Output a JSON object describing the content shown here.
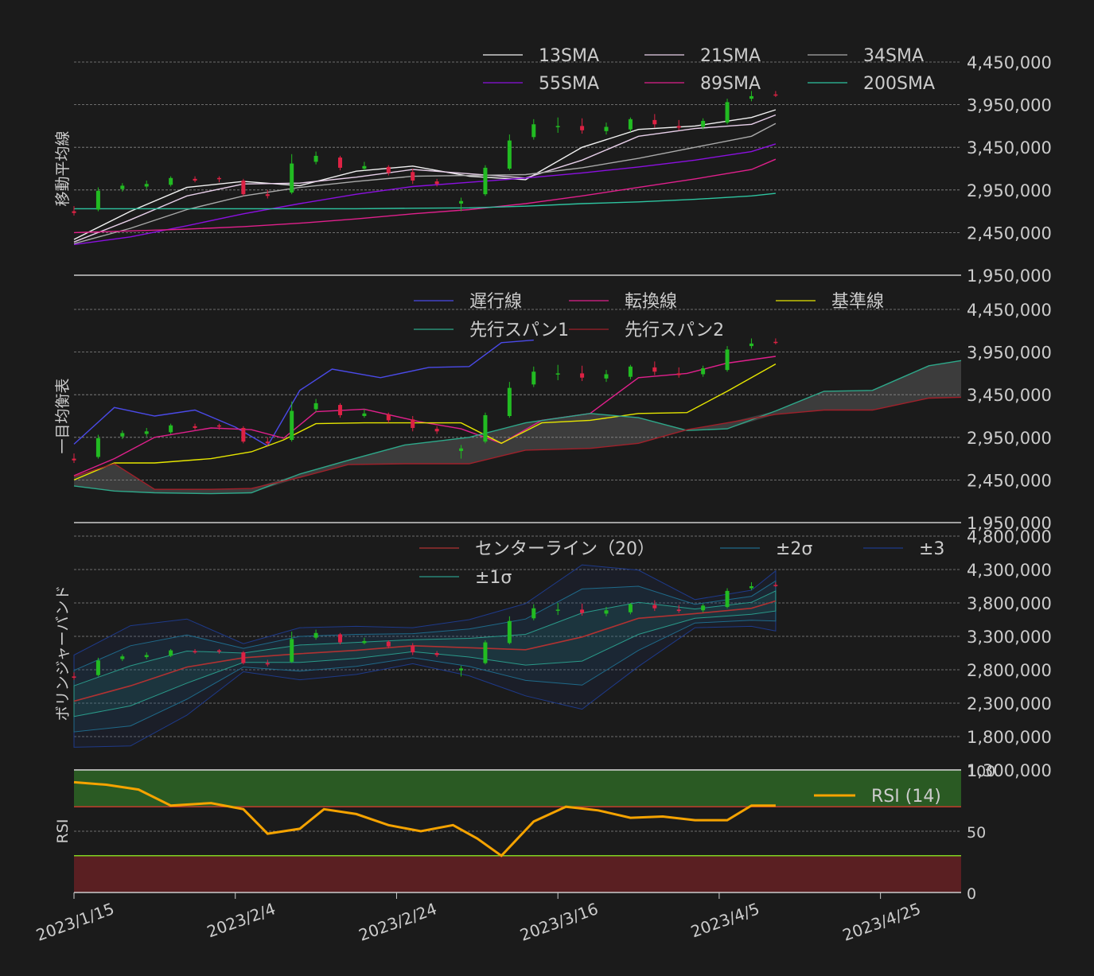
{
  "chart_data": [
    {
      "type": "line",
      "panel_label": "移動平均線",
      "x_range": [
        "2023-01-15",
        "2023-05-05"
      ],
      "ylim": [
        1950000,
        4450000
      ],
      "y_ticks": [
        1950000,
        2450000,
        2950000,
        3450000,
        3950000,
        4450000
      ],
      "y_tick_labels": [
        "1,950,000",
        "2,450,000",
        "2,950,000",
        "3,450,000",
        "3,950,000",
        "4,450,000"
      ],
      "grid": true,
      "legend_position": "top-right",
      "legend": [
        "13SMA",
        "34SMA",
        "89SMA",
        "21SMA",
        "55SMA",
        "200SMA"
      ],
      "series": [
        {
          "name": "13SMA",
          "color": "#f2f2f2",
          "x": [
            "2023-01-15",
            "2023-01-22",
            "2023-01-29",
            "2023-02-05",
            "2023-02-12",
            "2023-02-19",
            "2023-02-26",
            "2023-03-05",
            "2023-03-12",
            "2023-03-19",
            "2023-03-26",
            "2023-04-02",
            "2023-04-09",
            "2023-04-12"
          ],
          "values": [
            2370000,
            2700000,
            2980000,
            3050000,
            3000000,
            3170000,
            3230000,
            3110000,
            3070000,
            3450000,
            3660000,
            3700000,
            3800000,
            3890000
          ]
        },
        {
          "name": "21SMA",
          "color": "#e8d0ea",
          "x": [
            "2023-01-15",
            "2023-01-22",
            "2023-01-29",
            "2023-02-05",
            "2023-02-12",
            "2023-02-19",
            "2023-02-26",
            "2023-03-05",
            "2023-03-12",
            "2023-03-19",
            "2023-03-26",
            "2023-04-02",
            "2023-04-09",
            "2023-04-12"
          ],
          "values": [
            2340000,
            2600000,
            2880000,
            3020000,
            3030000,
            3100000,
            3190000,
            3140000,
            3090000,
            3300000,
            3580000,
            3670000,
            3720000,
            3830000
          ]
        },
        {
          "name": "34SMA",
          "color": "#aaaaaa",
          "x": [
            "2023-01-15",
            "2023-01-22",
            "2023-01-29",
            "2023-02-05",
            "2023-02-12",
            "2023-02-19",
            "2023-02-26",
            "2023-03-05",
            "2023-03-12",
            "2023-03-19",
            "2023-03-26",
            "2023-04-02",
            "2023-04-09",
            "2023-04-12"
          ],
          "values": [
            2320000,
            2500000,
            2720000,
            2880000,
            2980000,
            3050000,
            3110000,
            3120000,
            3130000,
            3210000,
            3320000,
            3450000,
            3580000,
            3730000
          ]
        },
        {
          "name": "55SMA",
          "color": "#8b10e0",
          "x": [
            "2023-01-15",
            "2023-01-22",
            "2023-01-29",
            "2023-02-05",
            "2023-02-12",
            "2023-02-19",
            "2023-02-26",
            "2023-03-05",
            "2023-03-12",
            "2023-03-19",
            "2023-03-26",
            "2023-04-02",
            "2023-04-09",
            "2023-04-12"
          ],
          "values": [
            2310000,
            2400000,
            2530000,
            2670000,
            2790000,
            2900000,
            2990000,
            3040000,
            3090000,
            3150000,
            3220000,
            3300000,
            3400000,
            3490000
          ]
        },
        {
          "name": "89SMA",
          "color": "#e0208c",
          "x": [
            "2023-01-15",
            "2023-01-22",
            "2023-01-29",
            "2023-02-05",
            "2023-02-12",
            "2023-02-19",
            "2023-02-26",
            "2023-03-05",
            "2023-03-12",
            "2023-03-19",
            "2023-03-26",
            "2023-04-02",
            "2023-04-09",
            "2023-04-12"
          ],
          "values": [
            2450000,
            2470000,
            2490000,
            2520000,
            2560000,
            2610000,
            2670000,
            2720000,
            2790000,
            2880000,
            2980000,
            3080000,
            3190000,
            3310000
          ]
        },
        {
          "name": "200SMA",
          "color": "#2ec4a0",
          "x": [
            "2023-01-15",
            "2023-01-22",
            "2023-01-29",
            "2023-02-05",
            "2023-02-12",
            "2023-02-19",
            "2023-02-26",
            "2023-03-05",
            "2023-03-12",
            "2023-03-19",
            "2023-03-26",
            "2023-04-02",
            "2023-04-09",
            "2023-04-12"
          ],
          "values": [
            2730000,
            2730000,
            2730000,
            2730000,
            2730000,
            2730000,
            2735000,
            2740000,
            2760000,
            2790000,
            2810000,
            2840000,
            2880000,
            2910000
          ]
        }
      ]
    },
    {
      "type": "line",
      "panel_label": "一目均衡表",
      "x_range": [
        "2023-01-15",
        "2023-05-05"
      ],
      "ylim": [
        1950000,
        4450000
      ],
      "y_ticks": [
        1950000,
        2450000,
        2950000,
        3450000,
        3950000,
        4450000
      ],
      "y_tick_labels": [
        "1,950,000",
        "2,450,000",
        "2,950,000",
        "3,450,000",
        "3,950,000",
        "4,450,000"
      ],
      "grid": true,
      "legend_position": "top-right",
      "legend": [
        "遅行線",
        "基準線",
        "先行スパン2",
        "転換線",
        "先行スパン1"
      ],
      "series": [
        {
          "name": "遅行線",
          "color": "#4a4ae8",
          "x": [
            "2023-01-15",
            "2023-01-20",
            "2023-01-25",
            "2023-01-30",
            "2023-02-04",
            "2023-02-08",
            "2023-02-12",
            "2023-02-16",
            "2023-02-22",
            "2023-02-28",
            "2023-03-05",
            "2023-03-09",
            "2023-03-13"
          ],
          "values": [
            2870000,
            3300000,
            3200000,
            3270000,
            3070000,
            2850000,
            3500000,
            3750000,
            3650000,
            3770000,
            3780000,
            4060000,
            4090000
          ]
        },
        {
          "name": "転換線",
          "color": "#e0208c",
          "x": [
            "2023-01-15",
            "2023-01-20",
            "2023-01-25",
            "2023-02-01",
            "2023-02-06",
            "2023-02-10",
            "2023-02-14",
            "2023-02-20",
            "2023-02-27",
            "2023-03-04",
            "2023-03-09",
            "2023-03-14",
            "2023-03-20",
            "2023-03-26",
            "2023-04-01",
            "2023-04-06",
            "2023-04-12"
          ],
          "values": [
            2500000,
            2700000,
            2950000,
            3060000,
            3040000,
            2940000,
            3250000,
            3280000,
            3130000,
            3050000,
            2880000,
            3150000,
            3230000,
            3650000,
            3700000,
            3820000,
            3900000
          ]
        },
        {
          "name": "基準線",
          "color": "#e6e600",
          "x": [
            "2023-01-15",
            "2023-01-20",
            "2023-01-25",
            "2023-02-01",
            "2023-02-06",
            "2023-02-10",
            "2023-02-14",
            "2023-02-20",
            "2023-02-27",
            "2023-03-04",
            "2023-03-09",
            "2023-03-14",
            "2023-03-20",
            "2023-03-26",
            "2023-04-01",
            "2023-04-06",
            "2023-04-12"
          ],
          "values": [
            2450000,
            2650000,
            2650000,
            2700000,
            2780000,
            2920000,
            3110000,
            3120000,
            3120000,
            3120000,
            2880000,
            3120000,
            3150000,
            3230000,
            3240000,
            3490000,
            3810000
          ]
        },
        {
          "name": "先行スパン1",
          "color": "#2ea88a",
          "x": [
            "2023-01-15",
            "2023-01-20",
            "2023-01-25",
            "2023-02-01",
            "2023-02-06",
            "2023-02-12",
            "2023-02-18",
            "2023-02-25",
            "2023-03-05",
            "2023-03-12",
            "2023-03-20",
            "2023-03-26",
            "2023-04-01",
            "2023-04-06",
            "2023-04-12",
            "2023-04-18",
            "2023-04-24",
            "2023-05-01",
            "2023-05-05"
          ],
          "values": [
            2380000,
            2320000,
            2300000,
            2290000,
            2300000,
            2520000,
            2680000,
            2860000,
            2950000,
            3120000,
            3230000,
            3180000,
            3030000,
            3050000,
            3260000,
            3490000,
            3500000,
            3790000,
            3850000
          ]
        },
        {
          "name": "先行スパン2",
          "color": "#a0202a",
          "x": [
            "2023-01-15",
            "2023-01-20",
            "2023-01-25",
            "2023-02-01",
            "2023-02-06",
            "2023-02-12",
            "2023-02-18",
            "2023-02-25",
            "2023-03-05",
            "2023-03-12",
            "2023-03-20",
            "2023-03-26",
            "2023-04-01",
            "2023-04-06",
            "2023-04-12",
            "2023-04-18",
            "2023-04-24",
            "2023-05-01",
            "2023-05-05"
          ],
          "values": [
            2490000,
            2640000,
            2340000,
            2340000,
            2350000,
            2480000,
            2630000,
            2640000,
            2640000,
            2800000,
            2820000,
            2880000,
            3040000,
            3120000,
            3220000,
            3270000,
            3270000,
            3410000,
            3420000
          ]
        }
      ]
    },
    {
      "type": "line",
      "panel_label": "ボリンジャーバンド",
      "x_range": [
        "2023-01-15",
        "2023-05-05"
      ],
      "ylim": [
        1300000,
        4800000
      ],
      "y_ticks": [
        1300000,
        1800000,
        2300000,
        2800000,
        3300000,
        3800000,
        4300000,
        4800000
      ],
      "y_tick_labels": [
        "1,300,000",
        "1,800,000",
        "2,300,000",
        "2,800,000",
        "3,300,000",
        "3,800,000",
        "4,300,000",
        "4,800,000"
      ],
      "grid": true,
      "legend_position": "top-right",
      "legend": [
        "センターライン（20）",
        "±2σ",
        "±3",
        "±1σ"
      ],
      "x": [
        "2023-01-15",
        "2023-01-22",
        "2023-01-29",
        "2023-02-05",
        "2023-02-12",
        "2023-02-19",
        "2023-02-26",
        "2023-03-05",
        "2023-03-12",
        "2023-03-19",
        "2023-03-26",
        "2023-04-02",
        "2023-04-09",
        "2023-04-12"
      ],
      "center": [
        2330000,
        2560000,
        2840000,
        2980000,
        3040000,
        3090000,
        3160000,
        3130000,
        3100000,
        3290000,
        3570000,
        3640000,
        3720000,
        3830000
      ],
      "sigma": [
        230000,
        300000,
        240000,
        70000,
        130000,
        120000,
        90000,
        140000,
        230000,
        360000,
        240000,
        70000,
        90000,
        150000
      ],
      "series": [
        {
          "name": "センターライン（20）",
          "color": "#b03232"
        },
        {
          "name": "±1σ",
          "color": "#2a9a8a"
        },
        {
          "name": "±2σ",
          "color": "#1f6a8a"
        },
        {
          "name": "±3",
          "color": "#1e3a8a"
        }
      ]
    },
    {
      "type": "line",
      "panel_label": "RSI",
      "x_range": [
        "2023-01-15",
        "2023-05-05"
      ],
      "ylim": [
        0,
        100
      ],
      "y_ticks": [
        0,
        50,
        100
      ],
      "y_tick_labels": [
        "0",
        "50",
        "100"
      ],
      "overbought": 70,
      "oversold": 30,
      "grid": true,
      "legend_position": "top-right",
      "series": [
        {
          "name": "RSI (14)",
          "color": "#f5a300",
          "x": [
            "2023-01-15",
            "2023-01-19",
            "2023-01-23",
            "2023-01-27",
            "2023-02-01",
            "2023-02-05",
            "2023-02-08",
            "2023-02-12",
            "2023-02-15",
            "2023-02-19",
            "2023-02-23",
            "2023-02-27",
            "2023-03-03",
            "2023-03-06",
            "2023-03-09",
            "2023-03-13",
            "2023-03-17",
            "2023-03-21",
            "2023-03-25",
            "2023-03-29",
            "2023-04-02",
            "2023-04-06",
            "2023-04-09",
            "2023-04-12"
          ],
          "values": [
            90,
            88,
            84,
            71,
            73,
            68,
            48,
            52,
            68,
            64,
            55,
            50,
            55,
            44,
            30,
            58,
            70,
            67,
            61,
            62,
            59,
            59,
            71,
            71
          ]
        }
      ]
    }
  ],
  "candles": {
    "up_color": "#22bb22",
    "down_color": "#dd2244",
    "x": [
      "2023-01-15",
      "2023-01-18",
      "2023-01-21",
      "2023-01-24",
      "2023-01-27",
      "2023-01-30",
      "2023-02-02",
      "2023-02-05",
      "2023-02-08",
      "2023-02-11",
      "2023-02-14",
      "2023-02-17",
      "2023-02-20",
      "2023-02-23",
      "2023-02-26",
      "2023-03-01",
      "2023-03-04",
      "2023-03-07",
      "2023-03-10",
      "2023-03-13",
      "2023-03-16",
      "2023-03-19",
      "2023-03-22",
      "2023-03-25",
      "2023-03-28",
      "2023-03-31",
      "2023-04-03",
      "2023-04-06",
      "2023-04-09",
      "2023-04-12"
    ],
    "open": [
      2700000,
      2720000,
      2960000,
      2990000,
      3010000,
      3080000,
      3090000,
      3060000,
      2900000,
      2920000,
      3280000,
      3330000,
      3200000,
      3220000,
      3160000,
      3050000,
      2790000,
      2900000,
      3200000,
      3570000,
      3690000,
      3700000,
      3640000,
      3660000,
      3770000,
      3700000,
      3690000,
      3740000,
      4020000,
      4070000
    ],
    "close": [
      2680000,
      2940000,
      3000000,
      3020000,
      3090000,
      3060000,
      3080000,
      2900000,
      2880000,
      3260000,
      3350000,
      3210000,
      3230000,
      3150000,
      3060000,
      3020000,
      2820000,
      3210000,
      3530000,
      3720000,
      3700000,
      3650000,
      3690000,
      3780000,
      3720000,
      3680000,
      3760000,
      3980000,
      4050000,
      4060000
    ],
    "high": [
      2760000,
      2980000,
      3030000,
      3060000,
      3110000,
      3110000,
      3110000,
      3080000,
      2950000,
      3370000,
      3400000,
      3350000,
      3280000,
      3240000,
      3200000,
      3080000,
      2860000,
      3240000,
      3600000,
      3780000,
      3800000,
      3790000,
      3740000,
      3800000,
      3840000,
      3770000,
      3790000,
      4020000,
      4110000,
      4110000
    ],
    "low": [
      2650000,
      2700000,
      2930000,
      2960000,
      2990000,
      3040000,
      3040000,
      2880000,
      2850000,
      2900000,
      3250000,
      3180000,
      3180000,
      3120000,
      3020000,
      2990000,
      2700000,
      2880000,
      3180000,
      3540000,
      3620000,
      3610000,
      3600000,
      3630000,
      3680000,
      3650000,
      3660000,
      3720000,
      3990000,
      4040000
    ]
  },
  "x_axis": {
    "tick_dates": [
      "2023-01-15",
      "2023-02-04",
      "2023-02-24",
      "2023-03-16",
      "2023-04-05",
      "2023-04-25"
    ],
    "tick_labels": [
      "2023/1/15",
      "2023/2/4",
      "2023/2/24",
      "2023/3/16",
      "2023/4/5",
      "2023/4/25"
    ]
  },
  "colors": {
    "background": "#1b1b1b",
    "text": "#cccccc",
    "grid": "#888888",
    "rsi_overbought_zone": "#2a5a23",
    "rsi_oversold_zone": "#5a1f22"
  }
}
